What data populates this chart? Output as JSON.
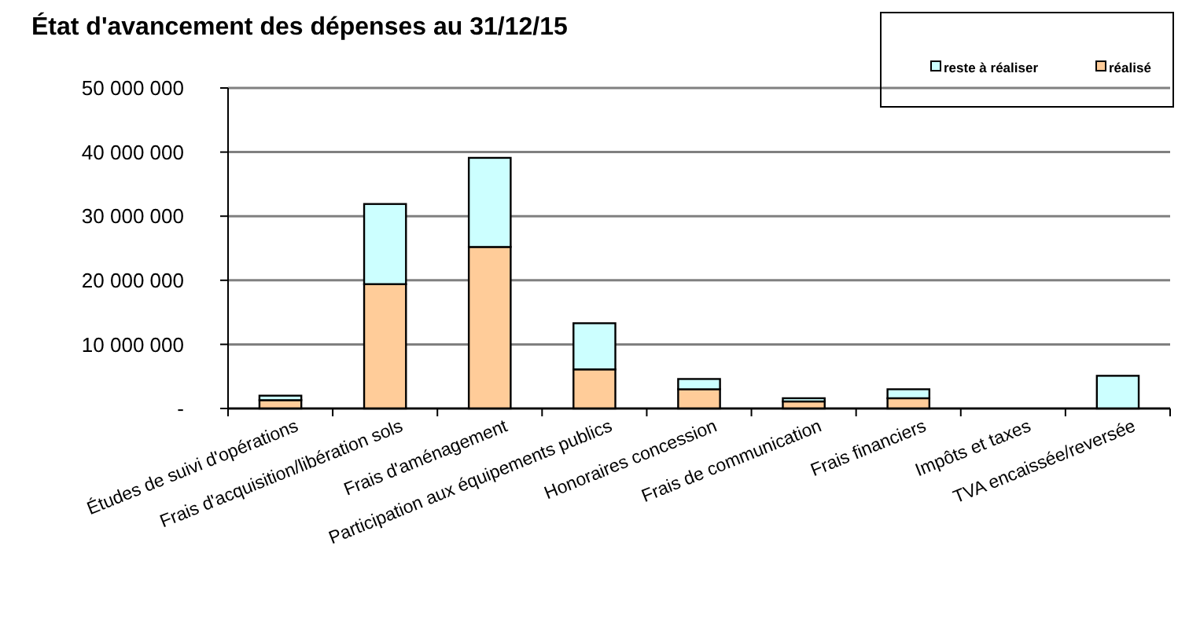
{
  "chart_data": {
    "type": "bar",
    "title": "État d'avancement des dépenses au 31/12/15",
    "categories": [
      "Études de suivi d'opérations",
      "Frais d'acquisition/libération sols",
      "Frais d'aménagement",
      "Participation aux équipements publics",
      "Honoraires concession",
      "Frais de communication",
      "Frais financiers",
      "Impôts et taxes",
      "TVA encaissée/reversée"
    ],
    "series": [
      {
        "name": "réalisé",
        "color": "#ffcc99",
        "values": [
          1300000,
          19400000,
          25200000,
          6100000,
          3000000,
          1100000,
          1600000,
          null,
          null
        ]
      },
      {
        "name": "reste à réaliser",
        "color": "#ccffff",
        "values": [
          700000,
          12500000,
          13900000,
          7200000,
          1600000,
          500000,
          1400000,
          0,
          5100000
        ]
      }
    ],
    "stacked": true,
    "ylim": [
      0,
      50000000
    ],
    "yticks": [
      {
        "value": 0,
        "label": "-"
      },
      {
        "value": 10000000,
        "label": "10 000 000"
      },
      {
        "value": 20000000,
        "label": "20 000 000"
      },
      {
        "value": 30000000,
        "label": "30 000 000"
      },
      {
        "value": 40000000,
        "label": "40 000 000"
      },
      {
        "value": 50000000,
        "label": "50 000 000"
      }
    ],
    "grid": "y",
    "legend": "top right"
  }
}
